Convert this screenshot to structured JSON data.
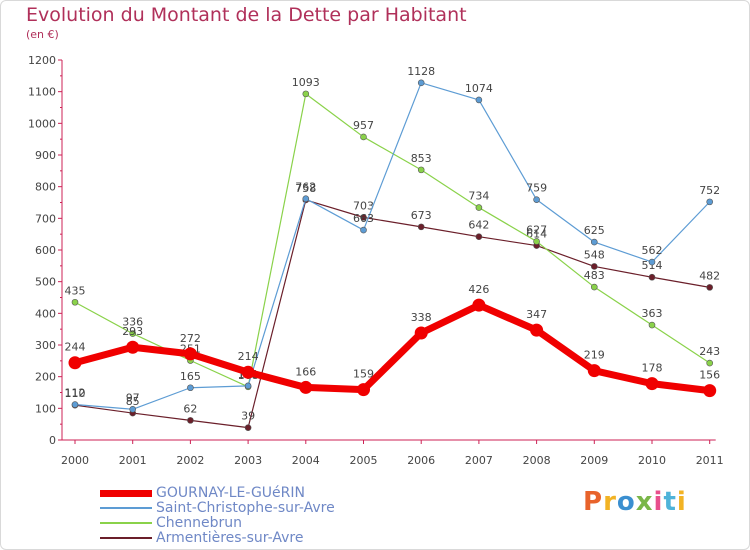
{
  "header": {
    "title": "Evolution du Montant de la Dette par Habitant",
    "subtitle": "(en €)"
  },
  "logo": {
    "text": "Proxiti",
    "colors": [
      "#e8632b",
      "#f2b324",
      "#3a8fd0",
      "#7ab648",
      "#e84f8c",
      "#4fb3d9",
      "#f2b324"
    ]
  },
  "chart_data": {
    "type": "line",
    "title": "Evolution du Montant de la Dette par Habitant",
    "ylabel": "(en €)",
    "xlabel": "",
    "categories": [
      "2000",
      "2001",
      "2002",
      "2003",
      "2004",
      "2005",
      "2006",
      "2007",
      "2008",
      "2009",
      "2010",
      "2011"
    ],
    "ylim": [
      0,
      1200
    ],
    "yticks": [
      0,
      100,
      200,
      300,
      400,
      500,
      600,
      700,
      800,
      900,
      1000,
      1100,
      1200
    ],
    "grid": false,
    "legend_position": "bottom-left",
    "series": [
      {
        "name": "Armentières-sur-Avre",
        "color": "#6b1f2a",
        "values": [
          110,
          85,
          62,
          39,
          758,
          703,
          673,
          642,
          614,
          548,
          514,
          482
        ],
        "labels": [
          "110",
          "85",
          "62",
          "39",
          "758",
          "703",
          "673",
          "642",
          "614",
          "548",
          "514",
          "482"
        ]
      },
      {
        "name": "Chennebrun",
        "color": "#8ad24a",
        "values": [
          435,
          336,
          251,
          168,
          1093,
          957,
          853,
          734,
          627,
          483,
          363,
          243
        ],
        "labels": [
          "435",
          "336",
          "251",
          "168",
          "1093",
          "957",
          "853",
          "734",
          "627",
          "483",
          "363",
          "243"
        ]
      },
      {
        "name": "Saint-Christophe-sur-Avre",
        "color": "#5d9cd4",
        "values": [
          112,
          97,
          165,
          171,
          762,
          663,
          1128,
          1074,
          759,
          625,
          562,
          752
        ],
        "labels": [
          "112",
          "97",
          "165",
          "171",
          "762",
          "663",
          "1128",
          "1074",
          "759",
          "625",
          "562",
          "752"
        ]
      },
      {
        "name": "GOURNAY-LE-GUéRIN",
        "color": "#f00000",
        "values": [
          244,
          293,
          272,
          214,
          166,
          159,
          338,
          426,
          347,
          219,
          178,
          156
        ],
        "labels": [
          "244",
          "293",
          "272",
          "214",
          "166",
          "159",
          "338",
          "426",
          "347",
          "219",
          "178",
          "156"
        ]
      }
    ],
    "legend": [
      {
        "name": "GOURNAY-LE-GUéRIN",
        "color": "#f00000",
        "width": 7
      },
      {
        "name": "Saint-Christophe-sur-Avre",
        "color": "#5d9cd4",
        "width": 1.2
      },
      {
        "name": "Chennebrun",
        "color": "#8ad24a",
        "width": 1.2
      },
      {
        "name": "Armentières-sur-Avre",
        "color": "#6b1f2a",
        "width": 1.2
      }
    ]
  }
}
